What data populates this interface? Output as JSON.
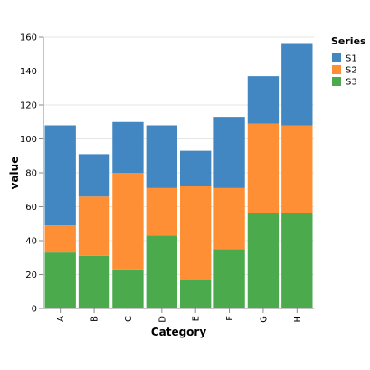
{
  "chart_data": {
    "type": "bar",
    "stacked": true,
    "categories": [
      "A",
      "B",
      "C",
      "D",
      "E",
      "F",
      "G",
      "H"
    ],
    "series": [
      {
        "name": "S3",
        "color": "#4aaa4c",
        "values": [
          33,
          31,
          23,
          43,
          17,
          35,
          56,
          56
        ]
      },
      {
        "name": "S2",
        "color": "#ff8f34",
        "values": [
          16,
          35,
          57,
          28,
          55,
          36,
          53,
          52
        ]
      },
      {
        "name": "S1",
        "color": "#4387c2",
        "values": [
          59,
          25,
          30,
          37,
          21,
          42,
          28,
          48
        ]
      }
    ],
    "title": "",
    "xlabel": "Category",
    "ylabel": "value",
    "ylim": [
      0,
      160
    ],
    "yticks": [
      0,
      20,
      40,
      60,
      80,
      100,
      120,
      140,
      160
    ],
    "grid": true,
    "legend": {
      "title": "Series",
      "position": "right",
      "entries": [
        "S1",
        "S2",
        "S3"
      ]
    }
  }
}
